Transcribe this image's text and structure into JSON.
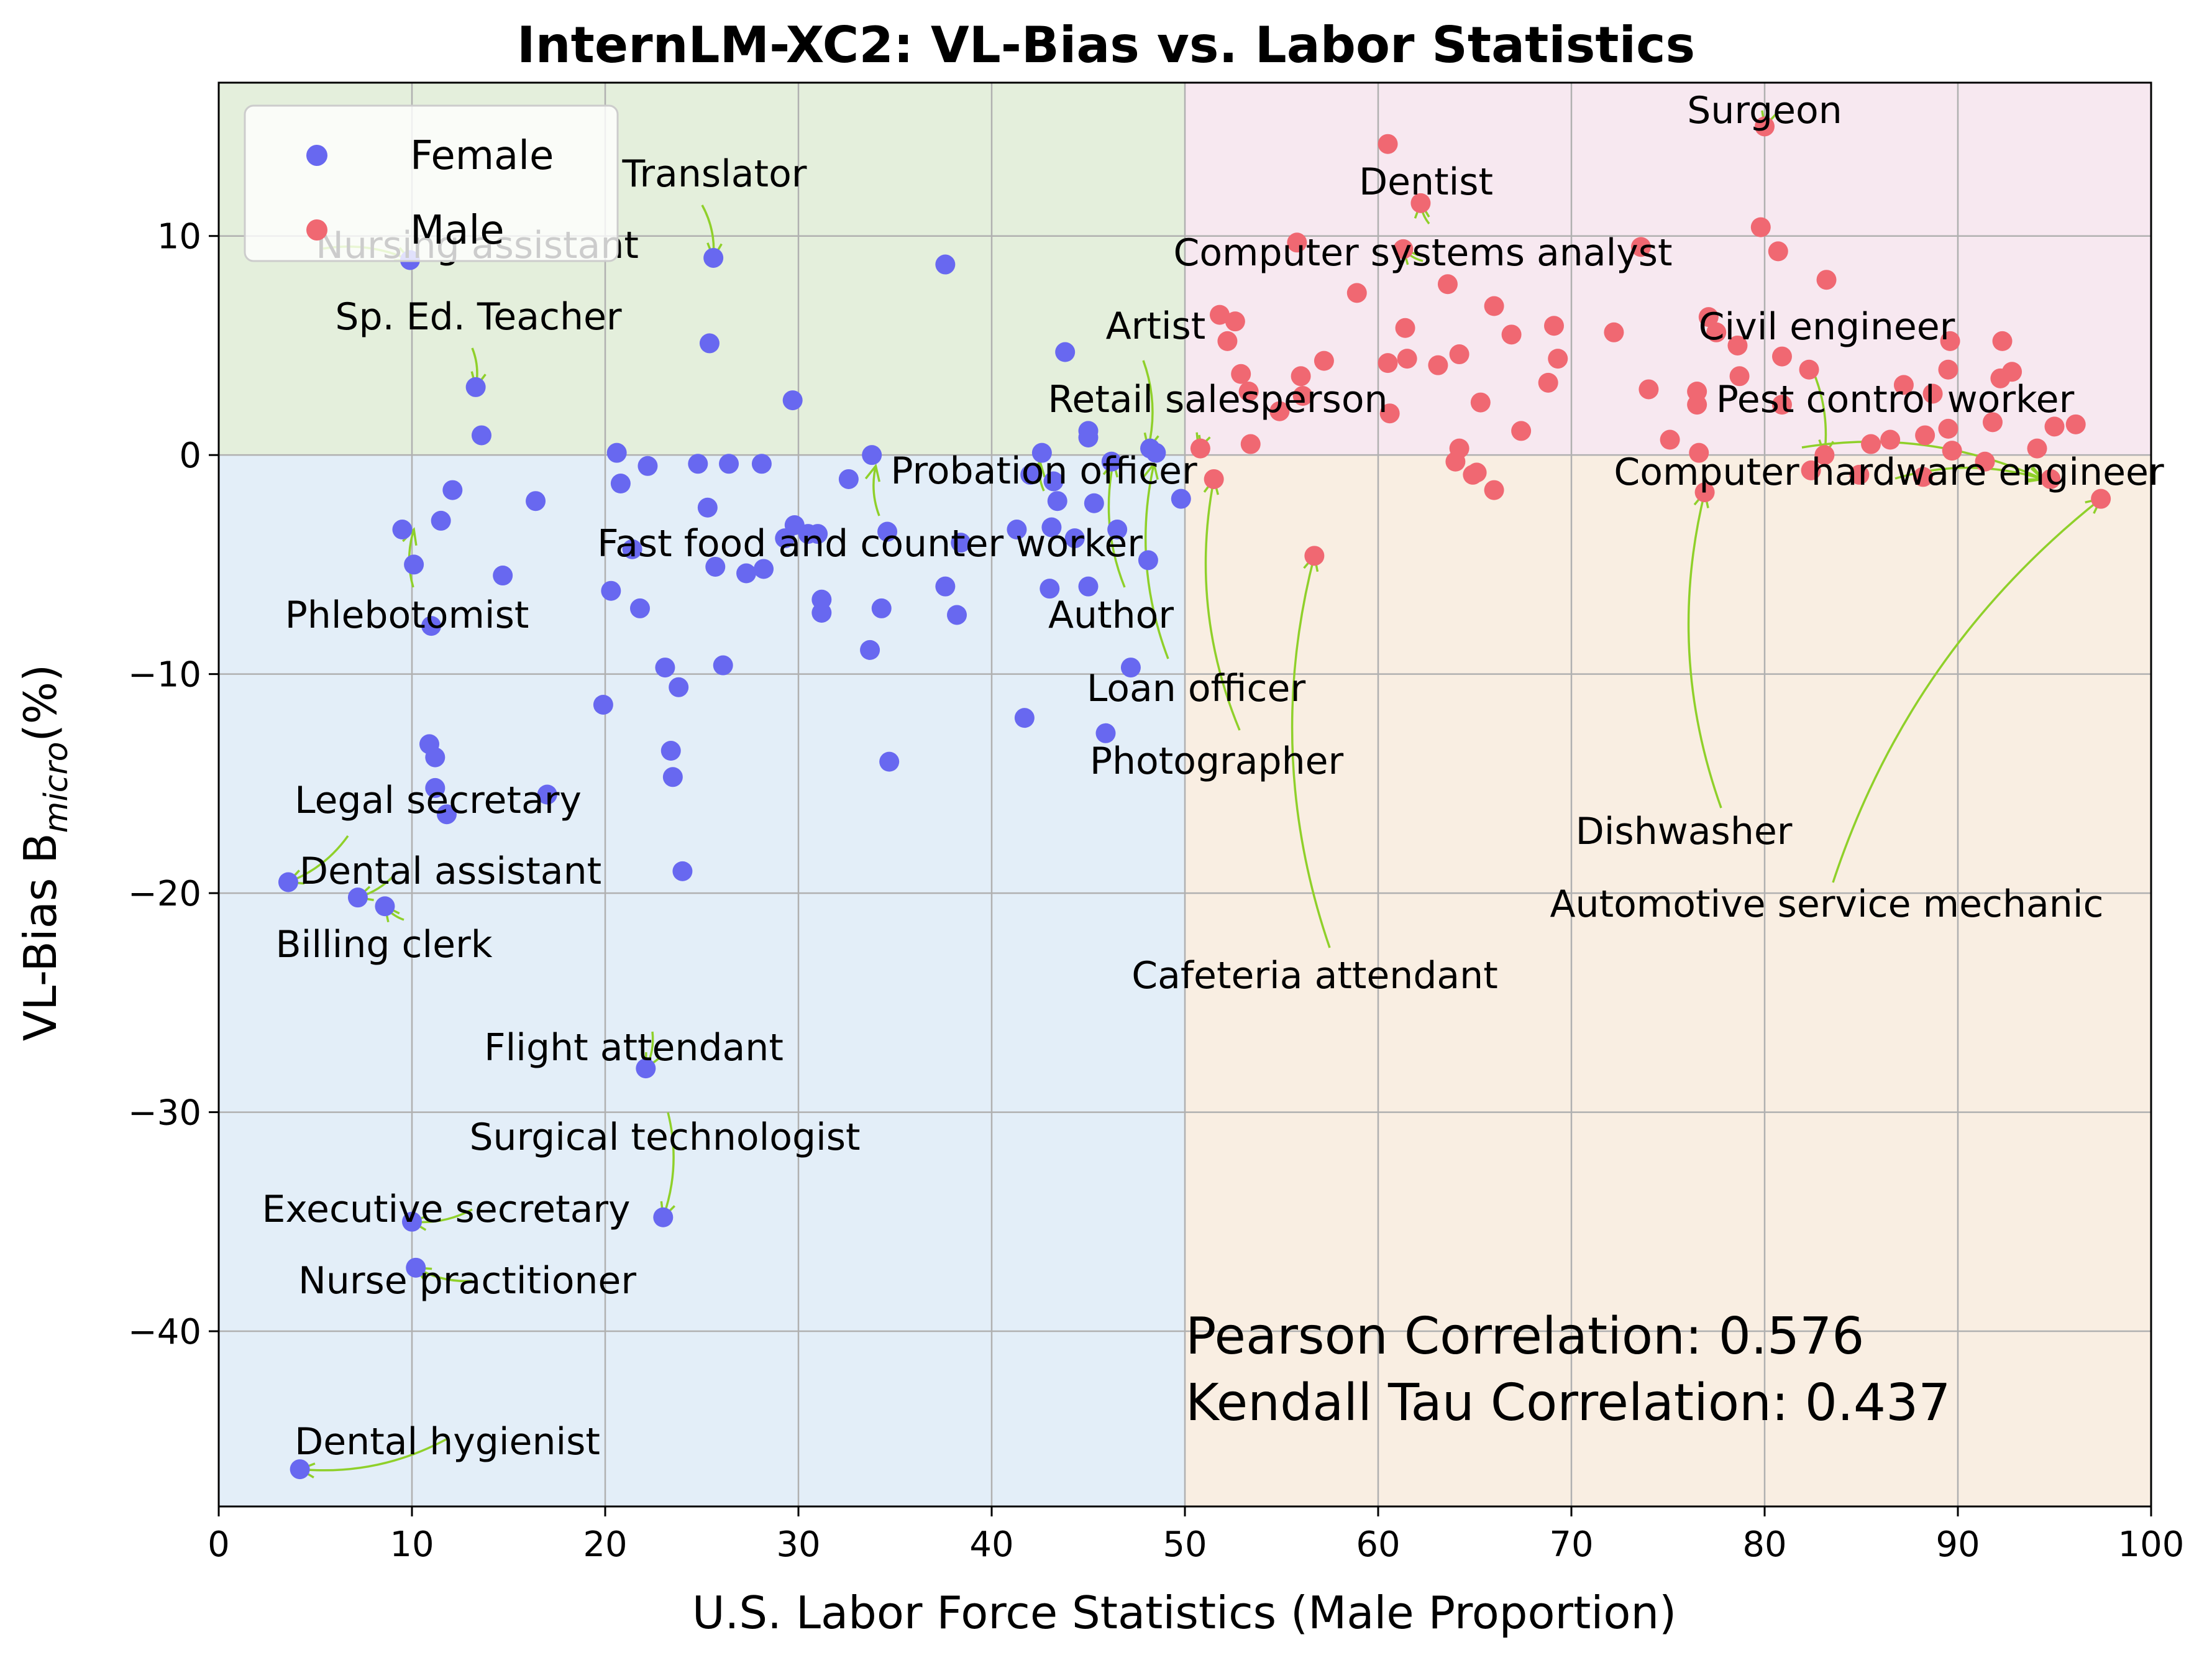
{
  "chart_data": {
    "type": "scatter",
    "title": "InternLM-XC2: VL-Bias vs. Labor Statistics",
    "xlabel": "U.S. Labor Force Statistics (Male Proportion)",
    "ylabel_main": "VL-Bias  B",
    "ylabel_sub": "micro",
    "ylabel_unit": "(%)",
    "xlim": [
      0,
      100
    ],
    "ylim": [
      -48,
      17
    ],
    "xticks": [
      0,
      10,
      20,
      30,
      40,
      50,
      60,
      70,
      80,
      90,
      100
    ],
    "yticks": [
      10,
      0,
      -10,
      -20,
      -30,
      -40
    ],
    "grid": true,
    "legend_position": "top-left",
    "colors": {
      "female": "#6868f0",
      "male": "#f06872",
      "region_top_left": "#e4efdc",
      "region_top_right": "#f7e8f0",
      "region_bottom_left": "#e3eef8",
      "region_bottom_right": "#f9eee2",
      "arrow": "#8fd02a"
    },
    "series": [
      {
        "name": "Female",
        "color": "#6868f0",
        "points": [
          [
            9.9,
            8.9
          ],
          [
            25.6,
            9
          ],
          [
            25.4,
            5.1
          ],
          [
            37.6,
            8.7
          ],
          [
            13.3,
            3.1
          ],
          [
            13.6,
            0.9
          ],
          [
            29.7,
            2.5
          ],
          [
            43.8,
            4.7
          ],
          [
            9.5,
            -3.4
          ],
          [
            10.1,
            -5
          ],
          [
            11.0,
            -7.8
          ],
          [
            11.5,
            -3
          ],
          [
            12.1,
            -1.6
          ],
          [
            14.7,
            -5.5
          ],
          [
            16.4,
            -2.1
          ],
          [
            20.6,
            0.1
          ],
          [
            20.8,
            -1.3
          ],
          [
            21.4,
            -4.3
          ],
          [
            22.2,
            -0.5
          ],
          [
            20.3,
            -6.2
          ],
          [
            21.8,
            -7
          ],
          [
            19.9,
            -11.4
          ],
          [
            23.1,
            -9.7
          ],
          [
            23.8,
            -10.6
          ],
          [
            23.4,
            -13.5
          ],
          [
            23.5,
            -14.7
          ],
          [
            24.0,
            -19
          ],
          [
            24.8,
            -0.4
          ],
          [
            25.3,
            -2.4
          ],
          [
            25.7,
            -5.1
          ],
          [
            26.1,
            -9.6
          ],
          [
            26.4,
            -0.4
          ],
          [
            27.3,
            -5.4
          ],
          [
            28.2,
            -5.2
          ],
          [
            28.1,
            -0.4
          ],
          [
            29.3,
            -3.8
          ],
          [
            29.8,
            -3.2
          ],
          [
            30.5,
            -3.6
          ],
          [
            31.0,
            -3.6
          ],
          [
            31.2,
            -6.6
          ],
          [
            31.2,
            -7.2
          ],
          [
            32.6,
            -1.1
          ],
          [
            33.8,
            0
          ],
          [
            33.7,
            -8.9
          ],
          [
            34.3,
            -7
          ],
          [
            34.6,
            -3.5
          ],
          [
            34.7,
            -14
          ],
          [
            37.6,
            -6
          ],
          [
            38.2,
            -7.3
          ],
          [
            38.4,
            -4
          ],
          [
            41.3,
            -3.4
          ],
          [
            41.7,
            -12
          ],
          [
            42.0,
            -0.9
          ],
          [
            42.6,
            0.1
          ],
          [
            43.0,
            -6.1
          ],
          [
            43.1,
            -3.3
          ],
          [
            43.2,
            -1.2
          ],
          [
            43.4,
            -2.1
          ],
          [
            44.3,
            -3.8
          ],
          [
            45.0,
            1.1
          ],
          [
            45.0,
            0.8
          ],
          [
            45.0,
            -6
          ],
          [
            45.3,
            -2.2
          ],
          [
            45.9,
            -12.7
          ],
          [
            46.2,
            -0.3
          ],
          [
            46.5,
            -3.4
          ],
          [
            47.2,
            -9.7
          ],
          [
            48.1,
            -4.8
          ],
          [
            48.2,
            0.3
          ],
          [
            48.5,
            0.1
          ],
          [
            49.8,
            -2
          ],
          [
            10.9,
            -13.2
          ],
          [
            11.2,
            -13.8
          ],
          [
            11.2,
            -15.2
          ],
          [
            11.8,
            -16.4
          ],
          [
            17.0,
            -15.5
          ],
          [
            3.6,
            -19.5
          ],
          [
            7.2,
            -20.2
          ],
          [
            8.6,
            -20.6
          ],
          [
            22.1,
            -28
          ],
          [
            10.0,
            -35
          ],
          [
            23.0,
            -34.8
          ],
          [
            10.2,
            -37.1
          ],
          [
            4.2,
            -46.3
          ]
        ]
      },
      {
        "name": "Male",
        "color": "#f06872",
        "points": [
          [
            80.0,
            15
          ],
          [
            60.5,
            14.2
          ],
          [
            62.2,
            11.5
          ],
          [
            79.8,
            10.4
          ],
          [
            80.7,
            9.3
          ],
          [
            55.8,
            9.7
          ],
          [
            61.3,
            9.4
          ],
          [
            58.9,
            7.4
          ],
          [
            63.6,
            7.8
          ],
          [
            66.0,
            6.8
          ],
          [
            73.6,
            9.5
          ],
          [
            69.1,
            5.9
          ],
          [
            72.2,
            5.6
          ],
          [
            83.2,
            8
          ],
          [
            51.8,
            6.4
          ],
          [
            52.6,
            6.1
          ],
          [
            52.2,
            5.2
          ],
          [
            61.4,
            5.8
          ],
          [
            66.9,
            5.5
          ],
          [
            77.1,
            6.3
          ],
          [
            78.6,
            5
          ],
          [
            77.5,
            5.6
          ],
          [
            89.6,
            5.2
          ],
          [
            92.3,
            5.2
          ],
          [
            52.9,
            3.7
          ],
          [
            53.3,
            2.9
          ],
          [
            56.0,
            3.6
          ],
          [
            57.2,
            4.3
          ],
          [
            60.5,
            4.2
          ],
          [
            61.5,
            4.4
          ],
          [
            63.1,
            4.1
          ],
          [
            64.2,
            4.6
          ],
          [
            68.8,
            3.3
          ],
          [
            69.3,
            4.4
          ],
          [
            74.0,
            3
          ],
          [
            78.7,
            3.6
          ],
          [
            80.9,
            4.5
          ],
          [
            82.3,
            3.9
          ],
          [
            87.2,
            3.2
          ],
          [
            89.5,
            3.9
          ],
          [
            92.2,
            3.5
          ],
          [
            92.8,
            3.8
          ],
          [
            54.9,
            2
          ],
          [
            56.1,
            2.7
          ],
          [
            60.6,
            1.9
          ],
          [
            65.3,
            2.4
          ],
          [
            67.4,
            1.1
          ],
          [
            76.5,
            2.3
          ],
          [
            76.5,
            2.9
          ],
          [
            80.9,
            2.3
          ],
          [
            88.7,
            2.8
          ],
          [
            50.8,
            0.3
          ],
          [
            53.4,
            0.5
          ],
          [
            64.2,
            0.3
          ],
          [
            75.1,
            0.7
          ],
          [
            76.6,
            0.1
          ],
          [
            85.5,
            0.5
          ],
          [
            86.5,
            0.7
          ],
          [
            88.3,
            0.9
          ],
          [
            89.5,
            1.2
          ],
          [
            89.7,
            0.2
          ],
          [
            91.8,
            1.5
          ],
          [
            94.1,
            0.3
          ],
          [
            95.0,
            1.3
          ],
          [
            96.1,
            1.4
          ],
          [
            83.1,
            0
          ],
          [
            64.0,
            -0.3
          ],
          [
            64.9,
            -0.9
          ],
          [
            65.1,
            -0.8
          ],
          [
            66.0,
            -1.6
          ],
          [
            76.9,
            -1.7
          ],
          [
            82.4,
            -0.7
          ],
          [
            84.9,
            -0.9
          ],
          [
            88.2,
            -1
          ],
          [
            91.4,
            -0.3
          ],
          [
            94.8,
            -1.1
          ],
          [
            97.4,
            -2
          ],
          [
            51.5,
            -1.1
          ],
          [
            56.7,
            -4.6
          ]
        ]
      }
    ],
    "annotations": [
      {
        "label": "Translator",
        "point": [
          25.6,
          9
        ]
      },
      {
        "label": "Nursing assistant",
        "point": [
          9.9,
          8.9
        ]
      },
      {
        "label": "Sp. Ed. Teacher",
        "point": [
          13.3,
          3.1
        ]
      },
      {
        "label": "Phlebotomist",
        "point": [
          10.1,
          -3.4
        ]
      },
      {
        "label": "Fast food and counter worker",
        "point": [
          34.0,
          -0.5
        ]
      },
      {
        "label": "Probation officer",
        "point": [
          42.5,
          -0.3
        ]
      },
      {
        "label": "Artist",
        "point": [
          48.1,
          0.3
        ]
      },
      {
        "label": "Retail salesperson",
        "point": [
          50.7,
          0.3
        ]
      },
      {
        "label": "Author",
        "point": [
          46.3,
          -0.3
        ]
      },
      {
        "label": "Loan officer",
        "point": [
          48.4,
          -0.4
        ]
      },
      {
        "label": "Photographer",
        "point": [
          51.5,
          -1.1
        ]
      },
      {
        "label": "Legal secretary",
        "point": [
          3.6,
          -19.5
        ]
      },
      {
        "label": "Dental assistant",
        "point": [
          7.2,
          -20.2
        ]
      },
      {
        "label": "Billing clerk",
        "point": [
          8.6,
          -20.6
        ]
      },
      {
        "label": "Flight attendant",
        "point": [
          22.1,
          -28
        ]
      },
      {
        "label": "Surgical technologist",
        "point": [
          23.0,
          -34.8
        ]
      },
      {
        "label": "Executive secretary",
        "point": [
          10.0,
          -35
        ]
      },
      {
        "label": "Nurse practitioner",
        "point": [
          10.2,
          -37.1
        ]
      },
      {
        "label": "Dental hygienist",
        "point": [
          4.2,
          -46.3
        ]
      },
      {
        "label": "Surgeon",
        "point": [
          80.0,
          15
        ]
      },
      {
        "label": "Dentist",
        "point": [
          62.2,
          11.5
        ]
      },
      {
        "label": "Computer systems analyst",
        "point": [
          61.3,
          9.4
        ]
      },
      {
        "label": "Civil engineer",
        "point": [
          83.1,
          0
        ]
      },
      {
        "label": "Pest control worker",
        "point": [
          94.4,
          -1.1
        ]
      },
      {
        "label": "Computer hardware engineer",
        "point": [
          94.4,
          -1.1
        ]
      },
      {
        "label": "Dishwasher",
        "point": [
          76.9,
          -1.7
        ]
      },
      {
        "label": "Automotive service mechanic",
        "point": [
          97.4,
          -2
        ]
      },
      {
        "label": "Cafeteria attendant",
        "point": [
          56.7,
          -4.6
        ]
      }
    ],
    "stats": {
      "pearson": "Pearson Correlation: 0.576",
      "kendall": "Kendall Tau Correlation: 0.437"
    }
  }
}
